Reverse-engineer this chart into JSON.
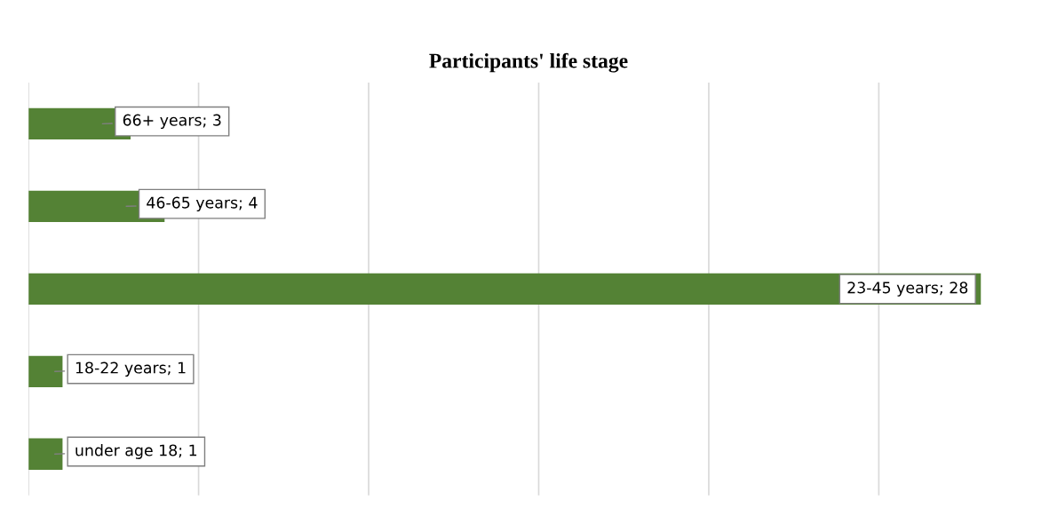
{
  "chart_data": {
    "type": "bar",
    "orientation": "horizontal",
    "title": "Participants' life stage",
    "categories": [
      null,
      null,
      null,
      null,
      null
    ],
    "values": [
      3,
      4,
      28,
      1,
      1
    ],
    "color": "#548235",
    "value_labels": [
      "66+ years; 3",
      "46-65 years; 4",
      "23-45 years; 28",
      "18-22 years; 1",
      "under age 18; 1"
    ],
    "tick_labels": false,
    "grid": "x"
  }
}
